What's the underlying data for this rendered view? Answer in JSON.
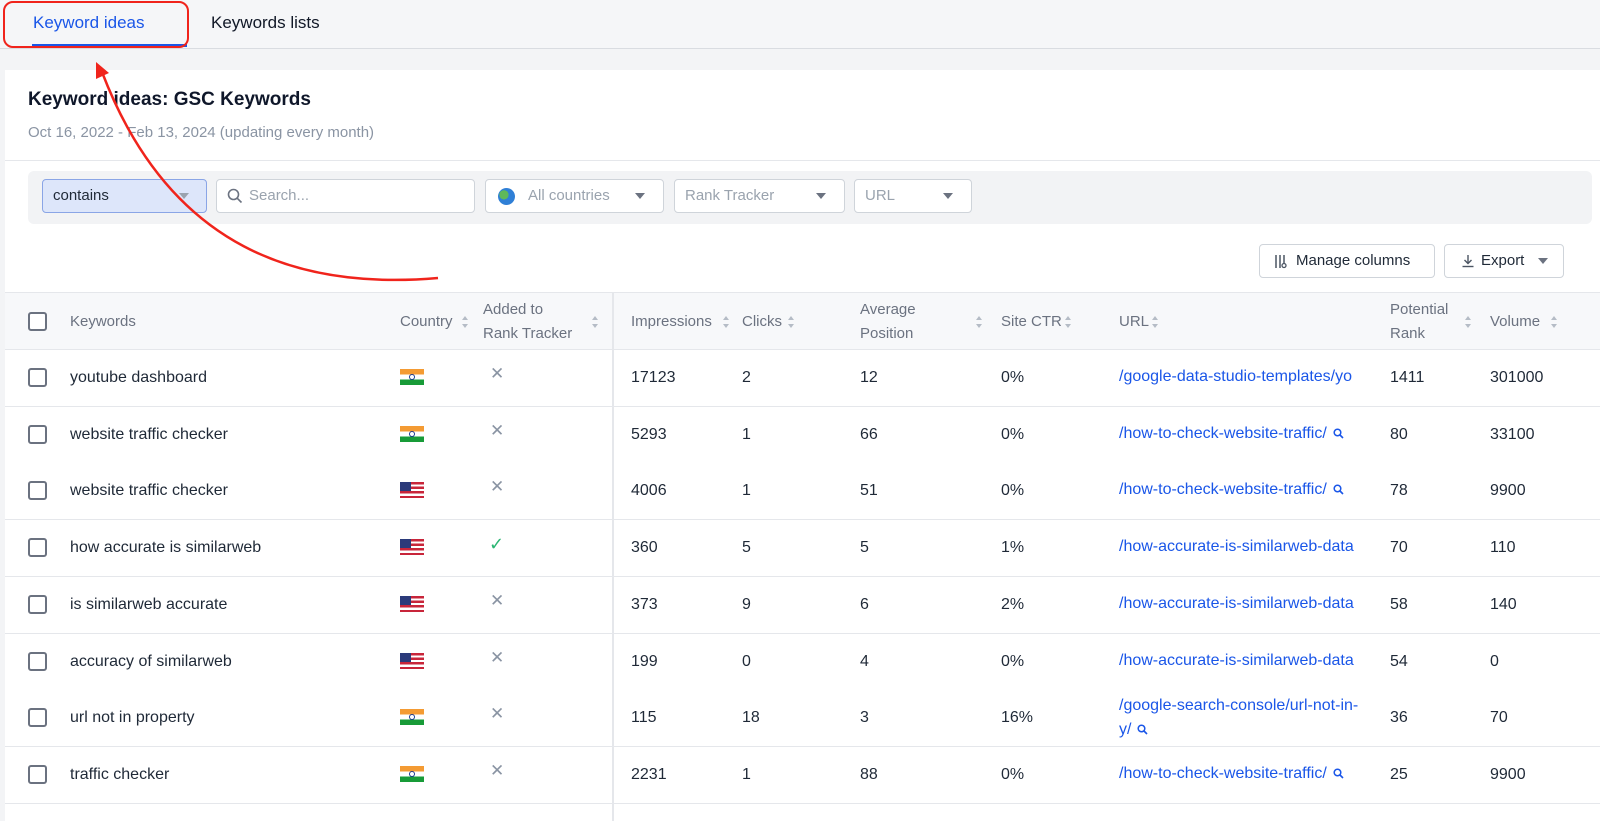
{
  "tabs": [
    {
      "label": "Keyword ideas",
      "active": true
    },
    {
      "label": "Keywords lists",
      "active": false
    }
  ],
  "header": {
    "title": "Keyword ideas: GSC Keywords",
    "subtitle": "Oct 16, 2022 - Feb 13, 2024 (updating every month)"
  },
  "filters": {
    "match": "contains",
    "search_placeholder": "Search...",
    "country": "All countries",
    "rank_tracker": "Rank Tracker",
    "url": "URL"
  },
  "toolbar": {
    "manage_columns": "Manage columns",
    "export": "Export"
  },
  "columns": {
    "keywords": "Keywords",
    "country": "Country",
    "added_1": "Added to",
    "added_2": "Rank Tracker",
    "impressions": "Impressions",
    "clicks": "Clicks",
    "avg_1": "Average",
    "avg_2": "Position",
    "ctr": "Site CTR",
    "url": "URL",
    "rank_1": "Potential",
    "rank_2": "Rank",
    "volume": "Volume"
  },
  "rows": [
    {
      "keyword": "youtube dashboard",
      "country": "IN",
      "added": false,
      "impressions": "17123",
      "clicks": "2",
      "position": "12",
      "ctr": "0%",
      "url": "/google-data-studio-templates/yo",
      "url2": "",
      "search_icon": false,
      "rank": "1411",
      "volume": "301000"
    },
    {
      "keyword": "website traffic checker",
      "country": "IN",
      "added": false,
      "impressions": "5293",
      "clicks": "1",
      "position": "66",
      "ctr": "0%",
      "url": "/how-to-check-website-traffic/",
      "url2": "",
      "search_icon": true,
      "rank": "80",
      "volume": "33100"
    },
    {
      "keyword": "website traffic checker",
      "country": "US",
      "added": false,
      "impressions": "4006",
      "clicks": "1",
      "position": "51",
      "ctr": "0%",
      "url": "/how-to-check-website-traffic/",
      "url2": "",
      "search_icon": true,
      "rank": "78",
      "volume": "9900"
    },
    {
      "keyword": "how accurate is similarweb",
      "country": "US",
      "added": true,
      "impressions": "360",
      "clicks": "5",
      "position": "5",
      "ctr": "1%",
      "url": "/how-accurate-is-similarweb-data",
      "url2": "",
      "search_icon": false,
      "rank": "70",
      "volume": "110"
    },
    {
      "keyword": "is similarweb accurate",
      "country": "US",
      "added": false,
      "impressions": "373",
      "clicks": "9",
      "position": "6",
      "ctr": "2%",
      "url": "/how-accurate-is-similarweb-data",
      "url2": "",
      "search_icon": false,
      "rank": "58",
      "volume": "140"
    },
    {
      "keyword": "accuracy of similarweb",
      "country": "US",
      "added": false,
      "impressions": "199",
      "clicks": "0",
      "position": "4",
      "ctr": "0%",
      "url": "/how-accurate-is-similarweb-data",
      "url2": "",
      "search_icon": false,
      "rank": "54",
      "volume": "0"
    },
    {
      "keyword": "url not in property",
      "country": "IN",
      "added": false,
      "impressions": "115",
      "clicks": "18",
      "position": "3",
      "ctr": "16%",
      "url": "/google-search-console/url-not-in-",
      "url2": "y/",
      "search_icon": true,
      "rank": "36",
      "volume": "70"
    },
    {
      "keyword": "traffic checker",
      "country": "IN",
      "added": false,
      "impressions": "2231",
      "clicks": "1",
      "position": "88",
      "ctr": "0%",
      "url": "/how-to-check-website-traffic/",
      "url2": "",
      "search_icon": true,
      "rank": "25",
      "volume": "9900"
    }
  ],
  "glyphs": {
    "cross": "✕",
    "check": "✓"
  },
  "colors": {
    "accent": "#1a56e8",
    "annotation": "#f0241c",
    "success": "#2bb673"
  }
}
